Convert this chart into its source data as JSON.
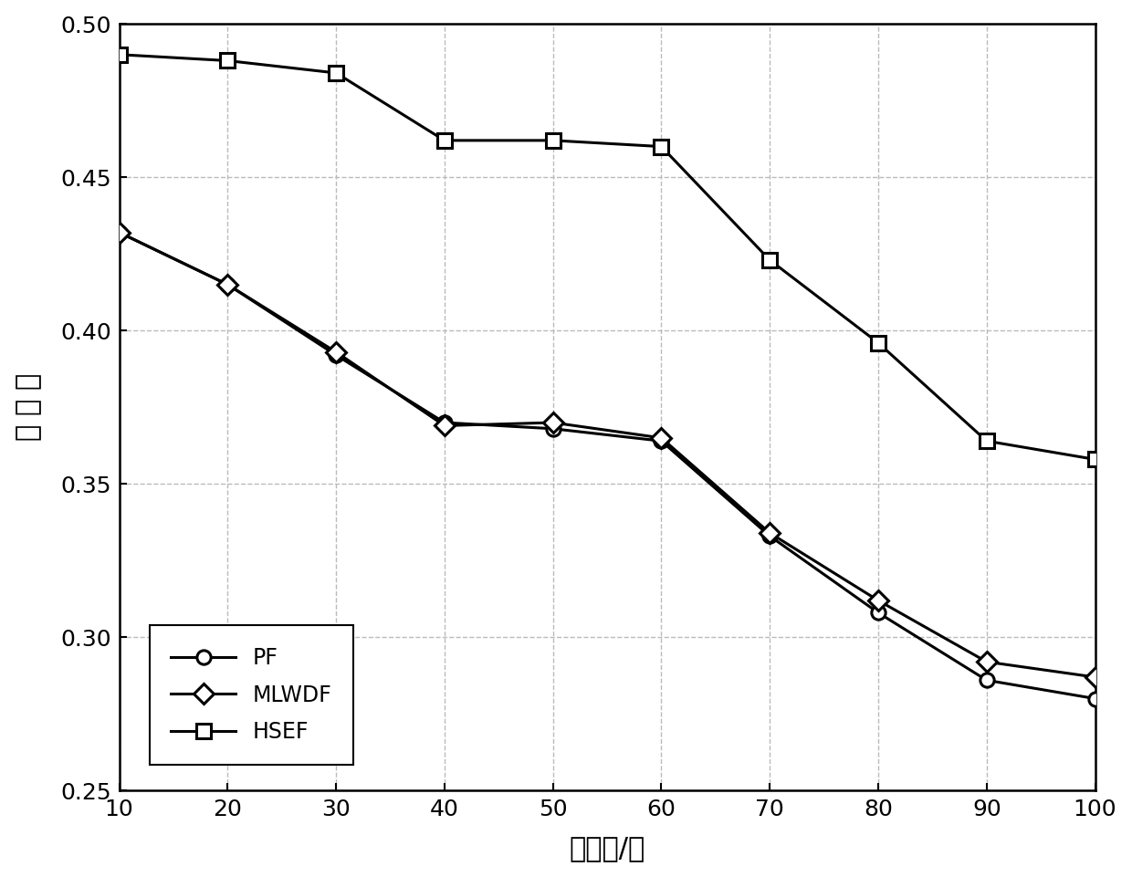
{
  "x": [
    10,
    20,
    30,
    40,
    50,
    60,
    70,
    80,
    90,
    100
  ],
  "PF": [
    0.432,
    0.415,
    0.392,
    0.37,
    0.368,
    0.364,
    0.333,
    0.308,
    0.286,
    0.28
  ],
  "MLWDF": [
    0.432,
    0.415,
    0.393,
    0.369,
    0.37,
    0.365,
    0.334,
    0.312,
    0.292,
    0.287
  ],
  "HSEF": [
    0.49,
    0.488,
    0.484,
    0.462,
    0.462,
    0.46,
    0.423,
    0.396,
    0.364,
    0.358
  ],
  "xlabel": "用户数/个",
  "ylabel": "公 平 性",
  "xlim": [
    10,
    100
  ],
  "ylim": [
    0.25,
    0.5
  ],
  "yticks": [
    0.25,
    0.3,
    0.35,
    0.4,
    0.45,
    0.5
  ],
  "xticks": [
    10,
    20,
    30,
    40,
    50,
    60,
    70,
    80,
    90,
    100
  ],
  "legend_labels": [
    "PF",
    "MLWDF",
    "HSEF"
  ],
  "grid_color": "#bbbbbb",
  "line_color": "black",
  "bg_color": "white",
  "xlabel_fontsize": 22,
  "ylabel_fontsize": 22,
  "tick_fontsize": 18,
  "legend_fontsize": 17,
  "marker_size": 11,
  "line_width": 2.2
}
